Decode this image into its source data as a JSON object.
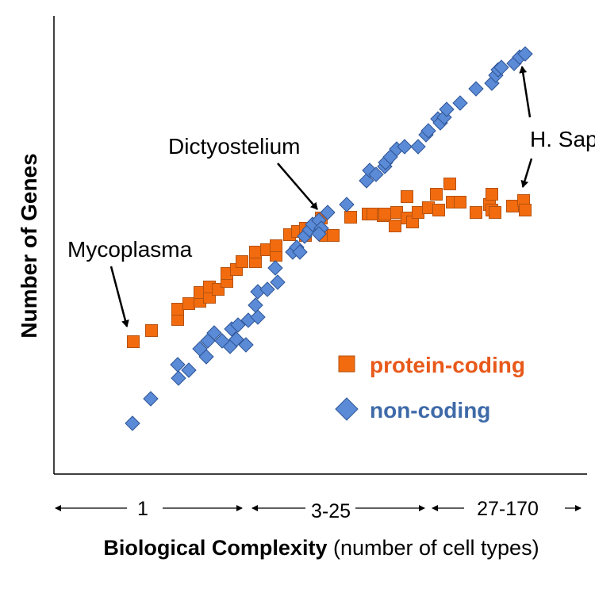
{
  "chart_data": {
    "type": "scatter",
    "title": "",
    "ylabel": "Number of Genes",
    "xlabel_bold": "Biological Complexity",
    "xlabel_rest": " (number of cell types)",
    "xlim": [
      0,
      672
    ],
    "ylim": [
      0,
      578
    ],
    "grid": false,
    "x_ranges": [
      "1",
      "3-25",
      "27-170"
    ],
    "legend_placement": "bottom-right",
    "annotations": [
      {
        "text": "Mycoplasma",
        "target": [
          92,
          174
        ]
      },
      {
        "text": "Dictyostelium",
        "target": [
          334,
          333
        ]
      },
      {
        "text": "H. Sapiens",
        "target": [
          590,
          516
        ]
      },
      {
        "text": "",
        "target": [
          590,
          361
        ]
      }
    ],
    "series": [
      {
        "name": "protein-coding",
        "marker": "square",
        "color": "#F26B0E",
        "edge": "#B5520F",
        "points": [
          [
            100,
            167
          ],
          [
            123,
            181
          ],
          [
            156,
            195
          ],
          [
            156,
            208
          ],
          [
            170,
            215
          ],
          [
            184,
            218
          ],
          [
            184,
            229
          ],
          [
            196,
            223
          ],
          [
            196,
            236
          ],
          [
            207,
            233
          ],
          [
            218,
            243
          ],
          [
            218,
            253
          ],
          [
            230,
            258
          ],
          [
            237,
            268
          ],
          [
            254,
            268
          ],
          [
            254,
            280
          ],
          [
            268,
            283
          ],
          [
            280,
            276
          ],
          [
            280,
            288
          ],
          [
            297,
            302
          ],
          [
            307,
            306
          ],
          [
            317,
            301
          ],
          [
            317,
            310
          ],
          [
            330,
            313
          ],
          [
            337,
            323
          ],
          [
            342,
            301
          ],
          [
            352,
            301
          ],
          [
            374,
            324
          ],
          [
            396,
            328
          ],
          [
            402,
            328
          ],
          [
            415,
            326
          ],
          [
            417,
            328
          ],
          [
            430,
            313
          ],
          [
            432,
            330
          ],
          [
            445,
            323
          ],
          [
            445,
            350
          ],
          [
            452,
            318
          ],
          [
            459,
            330
          ],
          [
            472,
            336
          ],
          [
            482,
            353
          ],
          [
            485,
            333
          ],
          [
            499,
            366
          ],
          [
            502,
            343
          ],
          [
            512,
            343
          ],
          [
            532,
            330
          ],
          [
            549,
            340
          ],
          [
            552,
            333
          ],
          [
            552,
            353
          ],
          [
            556,
            330
          ],
          [
            578,
            338
          ],
          [
            592,
            345
          ],
          [
            594,
            333
          ]
        ]
      },
      {
        "name": "non-coding",
        "marker": "diamond",
        "color": "#5B8BD6",
        "edge": "#2F5597",
        "points": [
          [
            99,
            64
          ],
          [
            122,
            95
          ],
          [
            157,
            121
          ],
          [
            170,
            131
          ],
          [
            156,
            138
          ],
          [
            192,
            148
          ],
          [
            184,
            158
          ],
          [
            194,
            168
          ],
          [
            202,
            178
          ],
          [
            222,
            161
          ],
          [
            230,
            170
          ],
          [
            212,
            168
          ],
          [
            224,
            183
          ],
          [
            232,
            188
          ],
          [
            245,
            194
          ],
          [
            257,
            198
          ],
          [
            242,
            163
          ],
          [
            254,
            213
          ],
          [
            257,
            230
          ],
          [
            269,
            233
          ],
          [
            282,
            242
          ],
          [
            279,
            260
          ],
          [
            301,
            280
          ],
          [
            306,
            286
          ],
          [
            310,
            280
          ],
          [
            316,
            300
          ],
          [
            322,
            308
          ],
          [
            326,
            315
          ],
          [
            334,
            320
          ],
          [
            337,
            310
          ],
          [
            334,
            303
          ],
          [
            345,
            330
          ],
          [
            369,
            340
          ],
          [
            394,
            370
          ],
          [
            398,
            383
          ],
          [
            406,
            378
          ],
          [
            417,
            388
          ],
          [
            418,
            393
          ],
          [
            424,
            400
          ],
          [
            432,
            410
          ],
          [
            442,
            413
          ],
          [
            459,
            413
          ],
          [
            469,
            428
          ],
          [
            472,
            433
          ],
          [
            484,
            448
          ],
          [
            487,
            443
          ],
          [
            492,
            450
          ],
          [
            495,
            460
          ],
          [
            512,
            468
          ],
          [
            532,
            486
          ],
          [
            552,
            493
          ],
          [
            557,
            503
          ],
          [
            560,
            510
          ],
          [
            564,
            513
          ],
          [
            580,
            518
          ],
          [
            587,
            526
          ],
          [
            594,
            530
          ]
        ]
      }
    ]
  }
}
